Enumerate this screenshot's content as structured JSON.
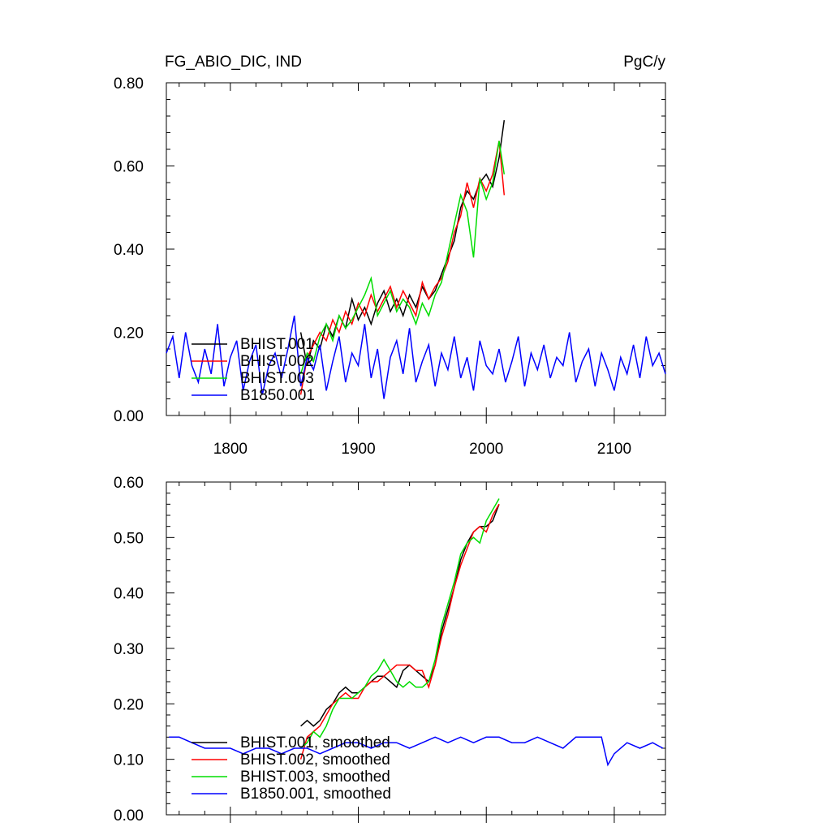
{
  "header": {
    "title_left": "FG_ABIO_DIC, IND",
    "title_right": "PgC/y"
  },
  "chart_data": [
    {
      "type": "line",
      "title": "FG_ABIO_DIC, IND",
      "units": "PgC/y",
      "xlim": [
        1750,
        2140
      ],
      "ylim": [
        0,
        0.8
      ],
      "x_ticks": [
        "1800",
        "1900",
        "2000",
        "2100"
      ],
      "y_ticks": [
        "0.00",
        "0.20",
        "0.40",
        "0.60",
        "0.80"
      ],
      "grid": false,
      "legend_position": "bottom-left",
      "series": [
        {
          "name": "BHIST.001",
          "color": "#000000",
          "x": [
            1855,
            1860,
            1865,
            1870,
            1875,
            1880,
            1885,
            1890,
            1895,
            1900,
            1905,
            1910,
            1915,
            1920,
            1925,
            1930,
            1935,
            1940,
            1945,
            1950,
            1955,
            1960,
            1965,
            1970,
            1975,
            1980,
            1985,
            1990,
            1995,
            2000,
            2005,
            2010,
            2014
          ],
          "values": [
            0.2,
            0.12,
            0.18,
            0.16,
            0.22,
            0.19,
            0.24,
            0.21,
            0.28,
            0.23,
            0.26,
            0.22,
            0.27,
            0.3,
            0.25,
            0.28,
            0.24,
            0.29,
            0.26,
            0.31,
            0.28,
            0.3,
            0.34,
            0.38,
            0.42,
            0.5,
            0.54,
            0.52,
            0.56,
            0.58,
            0.55,
            0.62,
            0.71
          ]
        },
        {
          "name": "BHIST.002",
          "color": "#ff0000",
          "x": [
            1855,
            1860,
            1865,
            1870,
            1875,
            1880,
            1885,
            1890,
            1895,
            1900,
            1905,
            1910,
            1915,
            1920,
            1925,
            1930,
            1935,
            1940,
            1945,
            1950,
            1955,
            1960,
            1965,
            1970,
            1975,
            1980,
            1985,
            1990,
            1995,
            2000,
            2005,
            2010,
            2014
          ],
          "values": [
            0.05,
            0.14,
            0.17,
            0.2,
            0.18,
            0.23,
            0.2,
            0.25,
            0.22,
            0.27,
            0.24,
            0.29,
            0.25,
            0.28,
            0.31,
            0.26,
            0.3,
            0.27,
            0.24,
            0.32,
            0.28,
            0.31,
            0.33,
            0.37,
            0.44,
            0.48,
            0.56,
            0.5,
            0.57,
            0.54,
            0.58,
            0.66,
            0.53
          ]
        },
        {
          "name": "BHIST.003",
          "color": "#00dd00",
          "x": [
            1855,
            1860,
            1865,
            1870,
            1875,
            1880,
            1885,
            1890,
            1895,
            1900,
            1905,
            1910,
            1915,
            1920,
            1925,
            1930,
            1935,
            1940,
            1945,
            1950,
            1955,
            1960,
            1965,
            1970,
            1975,
            1980,
            1985,
            1990,
            1995,
            2000,
            2005,
            2010,
            2014
          ],
          "values": [
            0.1,
            0.15,
            0.13,
            0.19,
            0.22,
            0.18,
            0.24,
            0.21,
            0.23,
            0.26,
            0.29,
            0.33,
            0.24,
            0.27,
            0.3,
            0.25,
            0.28,
            0.26,
            0.22,
            0.27,
            0.24,
            0.29,
            0.32,
            0.39,
            0.46,
            0.53,
            0.49,
            0.38,
            0.57,
            0.52,
            0.56,
            0.66,
            0.58
          ]
        },
        {
          "name": "B1850.001",
          "color": "#0000ff",
          "x": [
            1750,
            1755,
            1760,
            1765,
            1770,
            1775,
            1780,
            1785,
            1790,
            1795,
            1800,
            1805,
            1810,
            1815,
            1820,
            1825,
            1830,
            1835,
            1840,
            1845,
            1850,
            1855,
            1860,
            1865,
            1870,
            1875,
            1880,
            1885,
            1890,
            1895,
            1900,
            1905,
            1910,
            1915,
            1920,
            1925,
            1930,
            1935,
            1940,
            1945,
            1950,
            1955,
            1960,
            1965,
            1970,
            1975,
            1980,
            1985,
            1990,
            1995,
            2000,
            2005,
            2010,
            2015,
            2020,
            2025,
            2030,
            2035,
            2040,
            2045,
            2050,
            2055,
            2060,
            2065,
            2070,
            2075,
            2080,
            2085,
            2090,
            2095,
            2100,
            2105,
            2110,
            2115,
            2120,
            2125,
            2130,
            2135,
            2140
          ],
          "values": [
            0.15,
            0.19,
            0.09,
            0.2,
            0.12,
            0.08,
            0.16,
            0.1,
            0.22,
            0.07,
            0.14,
            0.18,
            0.06,
            0.13,
            0.17,
            0.05,
            0.12,
            0.15,
            0.09,
            0.16,
            0.24,
            0.07,
            0.14,
            0.11,
            0.17,
            0.06,
            0.13,
            0.19,
            0.08,
            0.15,
            0.12,
            0.22,
            0.09,
            0.16,
            0.04,
            0.14,
            0.18,
            0.1,
            0.21,
            0.08,
            0.13,
            0.17,
            0.07,
            0.15,
            0.11,
            0.19,
            0.09,
            0.14,
            0.06,
            0.18,
            0.12,
            0.1,
            0.16,
            0.08,
            0.13,
            0.19,
            0.07,
            0.15,
            0.11,
            0.17,
            0.09,
            0.14,
            0.12,
            0.2,
            0.08,
            0.13,
            0.16,
            0.07,
            0.15,
            0.11,
            0.06,
            0.14,
            0.1,
            0.17,
            0.09,
            0.19,
            0.12,
            0.15,
            0.1
          ]
        }
      ]
    },
    {
      "type": "line",
      "xlim": [
        1750,
        2140
      ],
      "ylim": [
        0,
        0.6
      ],
      "y_ticks": [
        "0.00",
        "0.10",
        "0.20",
        "0.30",
        "0.40",
        "0.50",
        "0.60"
      ],
      "grid": false,
      "legend_position": "bottom-left",
      "series": [
        {
          "name": "BHIST.001, smoothed",
          "color": "#000000",
          "x": [
            1855,
            1860,
            1865,
            1870,
            1875,
            1880,
            1885,
            1890,
            1895,
            1900,
            1905,
            1910,
            1915,
            1920,
            1925,
            1930,
            1935,
            1940,
            1945,
            1950,
            1955,
            1960,
            1965,
            1970,
            1975,
            1980,
            1985,
            1990,
            1995,
            2000,
            2005,
            2010
          ],
          "values": [
            0.16,
            0.17,
            0.16,
            0.17,
            0.19,
            0.2,
            0.22,
            0.23,
            0.22,
            0.22,
            0.23,
            0.24,
            0.25,
            0.25,
            0.24,
            0.23,
            0.26,
            0.27,
            0.26,
            0.25,
            0.24,
            0.27,
            0.33,
            0.37,
            0.41,
            0.46,
            0.49,
            0.51,
            0.52,
            0.52,
            0.53,
            0.56
          ]
        },
        {
          "name": "BHIST.002, smoothed",
          "color": "#ff0000",
          "x": [
            1855,
            1860,
            1865,
            1870,
            1875,
            1880,
            1885,
            1890,
            1895,
            1900,
            1905,
            1910,
            1915,
            1920,
            1925,
            1930,
            1935,
            1940,
            1945,
            1950,
            1955,
            1960,
            1965,
            1970,
            1975,
            1980,
            1985,
            1990,
            1995,
            2000,
            2005,
            2010
          ],
          "values": [
            0.1,
            0.14,
            0.15,
            0.16,
            0.18,
            0.2,
            0.21,
            0.22,
            0.21,
            0.21,
            0.23,
            0.24,
            0.24,
            0.25,
            0.26,
            0.27,
            0.27,
            0.27,
            0.26,
            0.26,
            0.23,
            0.27,
            0.32,
            0.36,
            0.41,
            0.45,
            0.48,
            0.51,
            0.52,
            0.51,
            0.54,
            0.56
          ]
        },
        {
          "name": "BHIST.003, smoothed",
          "color": "#00dd00",
          "x": [
            1855,
            1860,
            1865,
            1870,
            1875,
            1880,
            1885,
            1890,
            1895,
            1900,
            1905,
            1910,
            1915,
            1920,
            1925,
            1930,
            1935,
            1940,
            1945,
            1950,
            1955,
            1960,
            1965,
            1970,
            1975,
            1980,
            1985,
            1990,
            1995,
            2000,
            2005,
            2010
          ],
          "values": [
            0.12,
            0.13,
            0.15,
            0.14,
            0.16,
            0.19,
            0.21,
            0.21,
            0.21,
            0.22,
            0.23,
            0.25,
            0.26,
            0.28,
            0.26,
            0.24,
            0.23,
            0.24,
            0.23,
            0.23,
            0.24,
            0.28,
            0.34,
            0.38,
            0.42,
            0.47,
            0.49,
            0.5,
            0.49,
            0.53,
            0.55,
            0.57
          ]
        },
        {
          "name": "B1850.001, smoothed",
          "color": "#0000ff",
          "x": [
            1752,
            1760,
            1770,
            1780,
            1790,
            1800,
            1810,
            1820,
            1830,
            1840,
            1850,
            1860,
            1870,
            1880,
            1890,
            1900,
            1910,
            1920,
            1930,
            1940,
            1950,
            1960,
            1970,
            1980,
            1990,
            2000,
            2010,
            2020,
            2030,
            2040,
            2050,
            2060,
            2070,
            2080,
            2090,
            2095,
            2100,
            2110,
            2120,
            2130,
            2138
          ],
          "values": [
            0.14,
            0.14,
            0.13,
            0.12,
            0.12,
            0.12,
            0.11,
            0.12,
            0.12,
            0.11,
            0.12,
            0.12,
            0.11,
            0.12,
            0.13,
            0.13,
            0.12,
            0.13,
            0.13,
            0.12,
            0.13,
            0.14,
            0.13,
            0.14,
            0.13,
            0.14,
            0.14,
            0.13,
            0.13,
            0.14,
            0.13,
            0.12,
            0.14,
            0.14,
            0.14,
            0.09,
            0.11,
            0.13,
            0.12,
            0.13,
            0.12
          ]
        }
      ]
    }
  ]
}
